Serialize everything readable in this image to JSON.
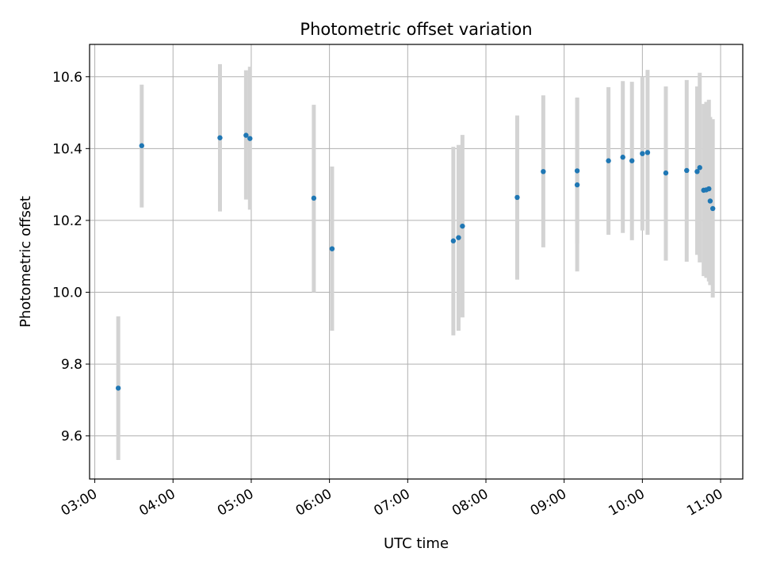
{
  "chart_data": {
    "type": "scatter",
    "title": "Photometric offset variation",
    "xlabel": "UTC time",
    "ylabel": "Photometric offset",
    "xlim": [
      "02:56",
      "11:17"
    ],
    "ylim": [
      9.48,
      10.69
    ],
    "xticks": [
      "03:00",
      "04:00",
      "05:00",
      "06:00",
      "07:00",
      "08:00",
      "09:00",
      "10:00",
      "11:00"
    ],
    "yticks": [
      "9.6",
      "9.8",
      "10.0",
      "10.2",
      "10.4",
      "10.6"
    ],
    "grid": true,
    "colors": {
      "point": "#1f77b4",
      "errorbar": "#d3d3d3",
      "grid": "#b0b0b0"
    },
    "points": [
      {
        "x": "03:18",
        "y": 9.733,
        "low": 9.533,
        "high": 9.933
      },
      {
        "x": "03:36",
        "y": 10.408,
        "low": 10.236,
        "high": 10.578
      },
      {
        "x": "04:36",
        "y": 10.43,
        "low": 10.225,
        "high": 10.635
      },
      {
        "x": "04:56",
        "y": 10.437,
        "low": 10.258,
        "high": 10.618
      },
      {
        "x": "04:59",
        "y": 10.428,
        "low": 10.23,
        "high": 10.628
      },
      {
        "x": "05:48",
        "y": 10.262,
        "low": 10.0,
        "high": 10.522
      },
      {
        "x": "06:02",
        "y": 10.121,
        "low": 9.893,
        "high": 10.35
      },
      {
        "x": "07:35",
        "y": 10.143,
        "low": 9.88,
        "high": 10.405
      },
      {
        "x": "07:39",
        "y": 10.152,
        "low": 9.893,
        "high": 10.41
      },
      {
        "x": "07:42",
        "y": 10.184,
        "low": 9.93,
        "high": 10.438
      },
      {
        "x": "08:24",
        "y": 10.264,
        "low": 10.035,
        "high": 10.492
      },
      {
        "x": "08:44",
        "y": 10.336,
        "low": 10.125,
        "high": 10.548
      },
      {
        "x": "09:10",
        "y": 10.338,
        "low": 10.136,
        "high": 10.542
      },
      {
        "x": "09:10",
        "y": 10.299,
        "low": 10.058,
        "high": 10.54
      },
      {
        "x": "09:34",
        "y": 10.366,
        "low": 10.16,
        "high": 10.571
      },
      {
        "x": "09:45",
        "y": 10.376,
        "low": 10.165,
        "high": 10.588
      },
      {
        "x": "09:52",
        "y": 10.366,
        "low": 10.145,
        "high": 10.586
      },
      {
        "x": "10:00",
        "y": 10.386,
        "low": 10.172,
        "high": 10.6
      },
      {
        "x": "10:04",
        "y": 10.389,
        "low": 10.16,
        "high": 10.619
      },
      {
        "x": "10:18",
        "y": 10.332,
        "low": 10.088,
        "high": 10.573
      },
      {
        "x": "10:34",
        "y": 10.339,
        "low": 10.085,
        "high": 10.591
      },
      {
        "x": "10:42",
        "y": 10.336,
        "low": 10.104,
        "high": 10.573
      },
      {
        "x": "10:44",
        "y": 10.347,
        "low": 10.083,
        "high": 10.611
      },
      {
        "x": "10:47",
        "y": 10.284,
        "low": 10.045,
        "high": 10.524
      },
      {
        "x": "10:49",
        "y": 10.285,
        "low": 10.04,
        "high": 10.53
      },
      {
        "x": "10:51",
        "y": 10.288,
        "low": 10.03,
        "high": 10.536
      },
      {
        "x": "10:52",
        "y": 10.254,
        "low": 10.02,
        "high": 10.488
      },
      {
        "x": "10:54",
        "y": 10.233,
        "low": 9.985,
        "high": 10.482
      }
    ]
  }
}
